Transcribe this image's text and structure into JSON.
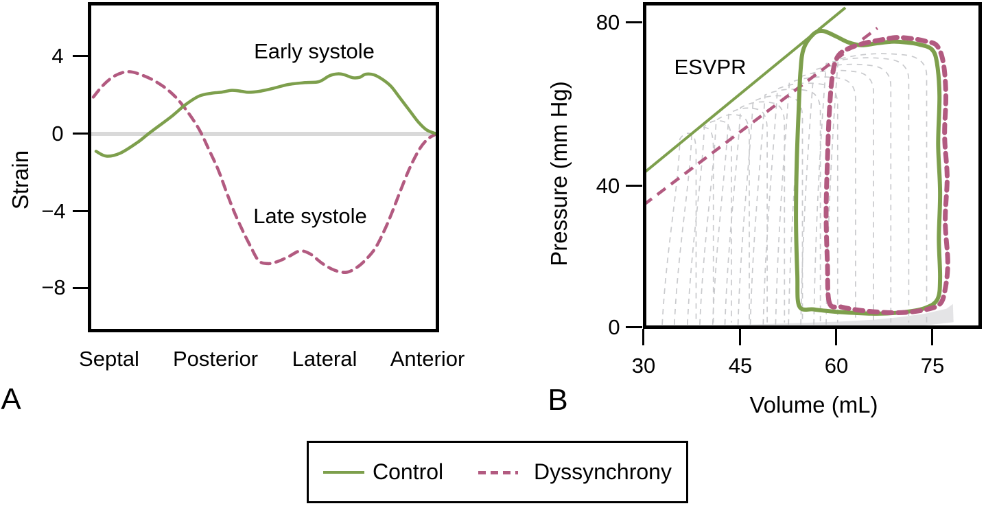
{
  "panel_labels": {
    "a": "A",
    "b": "B"
  },
  "colors": {
    "control": "#7d9f4c",
    "dyssynchrony": "#b25a80",
    "background_loop": "#c9cacd",
    "zero_line": "#d9d9d9",
    "edpvr_fill": "#e4e4e6",
    "axis": "#000000"
  },
  "legend": {
    "control_label": "Control",
    "dyssynchrony_label": "Dyssynchrony"
  },
  "chart_data": [
    {
      "id": "regional_strain",
      "type": "line",
      "ylabel": "Strain",
      "x_categories": [
        "Septal",
        "Posterior",
        "Lateral",
        "Anterior"
      ],
      "yticks": [
        4,
        0,
        -4,
        -8
      ],
      "ytick_labels": [
        "4",
        "0",
        "−4",
        "−8"
      ],
      "ylim": [
        -10.2,
        6.8
      ],
      "zero_line": true,
      "legend_position": "bottom",
      "annotations": [
        {
          "text": "Early systole"
        },
        {
          "text": "Late systole"
        }
      ],
      "series": [
        {
          "name": "Early systole",
          "legend": "Control",
          "style": "solid",
          "color": "control",
          "points": [
            [
              0.008,
              -0.9
            ],
            [
              0.038,
              -1.15
            ],
            [
              0.078,
              -1.0
            ],
            [
              0.128,
              -0.45
            ],
            [
              0.164,
              0.05
            ],
            [
              0.228,
              0.9
            ],
            [
              0.268,
              1.5
            ],
            [
              0.308,
              1.95
            ],
            [
              0.344,
              2.1
            ],
            [
              0.372,
              2.15
            ],
            [
              0.404,
              2.25
            ],
            [
              0.432,
              2.2
            ],
            [
              0.452,
              2.15
            ],
            [
              0.484,
              2.2
            ],
            [
              0.524,
              2.35
            ],
            [
              0.568,
              2.55
            ],
            [
              0.618,
              2.65
            ],
            [
              0.658,
              2.7
            ],
            [
              0.688,
              3.0
            ],
            [
              0.712,
              3.1
            ],
            [
              0.732,
              3.05
            ],
            [
              0.756,
              2.9
            ],
            [
              0.776,
              2.92
            ],
            [
              0.794,
              3.08
            ],
            [
              0.818,
              3.05
            ],
            [
              0.844,
              2.8
            ],
            [
              0.868,
              2.45
            ],
            [
              0.894,
              1.85
            ],
            [
              0.922,
              1.2
            ],
            [
              0.948,
              0.6
            ],
            [
              0.972,
              0.2
            ],
            [
              1.0,
              0.0
            ]
          ]
        },
        {
          "name": "Late systole",
          "legend": "Dyssynchrony",
          "style": "dashed",
          "color": "dyssynchrony",
          "points": [
            [
              0.0,
              1.9
            ],
            [
              0.028,
              2.5
            ],
            [
              0.058,
              2.95
            ],
            [
              0.088,
              3.18
            ],
            [
              0.112,
              3.2
            ],
            [
              0.14,
              3.05
            ],
            [
              0.172,
              2.8
            ],
            [
              0.208,
              2.4
            ],
            [
              0.24,
              1.9
            ],
            [
              0.268,
              1.3
            ],
            [
              0.294,
              0.65
            ],
            [
              0.314,
              0.05
            ],
            [
              0.338,
              -0.85
            ],
            [
              0.364,
              -1.85
            ],
            [
              0.388,
              -3.0
            ],
            [
              0.41,
              -4.0
            ],
            [
              0.434,
              -4.95
            ],
            [
              0.458,
              -5.8
            ],
            [
              0.482,
              -6.55
            ],
            [
              0.508,
              -6.7
            ],
            [
              0.536,
              -6.6
            ],
            [
              0.568,
              -6.35
            ],
            [
              0.602,
              -6.05
            ],
            [
              0.632,
              -6.2
            ],
            [
              0.668,
              -6.7
            ],
            [
              0.704,
              -7.05
            ],
            [
              0.738,
              -7.15
            ],
            [
              0.768,
              -6.9
            ],
            [
              0.794,
              -6.5
            ],
            [
              0.822,
              -5.9
            ],
            [
              0.848,
              -5.0
            ],
            [
              0.872,
              -4.0
            ],
            [
              0.896,
              -2.9
            ],
            [
              0.924,
              -1.7
            ],
            [
              0.952,
              -0.75
            ],
            [
              0.976,
              -0.25
            ],
            [
              1.0,
              0.0
            ]
          ]
        }
      ]
    },
    {
      "id": "pressure_volume_loops",
      "type": "line",
      "xlabel": "Volume (mL)",
      "ylabel": "Pressure (mm Hg)",
      "xticks": [
        30,
        45,
        60,
        75
      ],
      "xtick_labels": [
        "30",
        "45",
        "60",
        "75"
      ],
      "yticks": [
        80,
        40,
        0
      ],
      "ytick_labels": [
        "80",
        "40",
        "0"
      ],
      "xlim": [
        30,
        82.5
      ],
      "ylim": [
        0,
        86
      ],
      "annotations": [
        {
          "text": "ESVPR"
        }
      ],
      "esvpr_lines": [
        {
          "name": "Control",
          "style": "solid",
          "color": "control",
          "points": [
            [
              30,
              43
            ],
            [
              61.5,
              83.5
            ]
          ]
        },
        {
          "name": "Dyssynchrony",
          "style": "dashed",
          "color": "dyssynchrony",
          "points": [
            [
              30,
              34.5
            ],
            [
              66.5,
              78.5
            ]
          ]
        }
      ],
      "loops": [
        {
          "name": "Control",
          "style": "solid",
          "color": "control",
          "points": [
            [
              54.3,
              6
            ],
            [
              54.0,
              15
            ],
            [
              53.8,
              30
            ],
            [
              53.9,
              45
            ],
            [
              54.2,
              58
            ],
            [
              54.5,
              68
            ],
            [
              55.0,
              73.5
            ],
            [
              56.5,
              77
            ],
            [
              58,
              77.8
            ],
            [
              60,
              76.5
            ],
            [
              62,
              75
            ],
            [
              64,
              74.3
            ],
            [
              66.5,
              74.8
            ],
            [
              69,
              75.2
            ],
            [
              71,
              75
            ],
            [
              73,
              74.5
            ],
            [
              75,
              73.3
            ],
            [
              75.8,
              70
            ],
            [
              76.2,
              62
            ],
            [
              76.0,
              50
            ],
            [
              76.3,
              38
            ],
            [
              76.1,
              25
            ],
            [
              76.3,
              14
            ],
            [
              75.9,
              8
            ],
            [
              74,
              5.5
            ],
            [
              71,
              4.4
            ],
            [
              67,
              3.9
            ],
            [
              63,
              4.1
            ],
            [
              59,
              4.6
            ],
            [
              56.5,
              5.1
            ]
          ]
        },
        {
          "name": "Dyssynchrony",
          "style": "dashed",
          "color": "dyssynchrony",
          "points": [
            [
              59.0,
              7
            ],
            [
              58.7,
              18
            ],
            [
              58.5,
              32
            ],
            [
              58.7,
              46
            ],
            [
              59.0,
              58
            ],
            [
              59.5,
              67
            ],
            [
              60.3,
              71.5
            ],
            [
              62,
              73.5
            ],
            [
              64.5,
              74.8
            ],
            [
              67,
              75.6
            ],
            [
              69.5,
              76.2
            ],
            [
              72,
              75.9
            ],
            [
              74,
              75.3
            ],
            [
              75.8,
              74.2
            ],
            [
              76.8,
              70
            ],
            [
              77.2,
              62
            ],
            [
              77.0,
              52
            ],
            [
              77.4,
              42
            ],
            [
              77.1,
              30
            ],
            [
              77.5,
              18
            ],
            [
              77.0,
              10
            ],
            [
              76.2,
              6.5
            ],
            [
              74,
              5.0
            ],
            [
              70.5,
              4.2
            ],
            [
              67,
              4.3
            ],
            [
              63.5,
              4.9
            ],
            [
              60.8,
              5.8
            ]
          ]
        }
      ],
      "background_loops": [
        {
          "esv": 35.5,
          "edv": 38.2,
          "top_p": 53.0,
          "slant": 2.6
        },
        {
          "esv": 37.3,
          "edv": 40.9,
          "top_p": 54.5,
          "slant": 2.5
        },
        {
          "esv": 39.2,
          "edv": 43.7,
          "top_p": 56.1,
          "slant": 2.35
        },
        {
          "esv": 41.0,
          "edv": 46.5,
          "top_p": 57.6,
          "slant": 2.23
        },
        {
          "esv": 42.9,
          "edv": 49.3,
          "top_p": 59.2,
          "slant": 2.11
        },
        {
          "esv": 44.7,
          "edv": 52.0,
          "top_p": 60.7,
          "slant": 2.0
        },
        {
          "esv": 46.6,
          "edv": 54.8,
          "top_p": 62.2,
          "slant": 1.86
        },
        {
          "esv": 48.4,
          "edv": 57.6,
          "top_p": 63.8,
          "slant": 1.74
        },
        {
          "esv": 50.3,
          "edv": 60.3,
          "top_p": 65.3,
          "slant": 1.62
        },
        {
          "esv": 52.1,
          "edv": 63.1,
          "top_p": 66.8,
          "slant": 1.49
        },
        {
          "esv": 54.0,
          "edv": 65.9,
          "top_p": 68.4,
          "slant": 1.37
        },
        {
          "esv": 55.8,
          "edv": 68.6,
          "top_p": 69.9,
          "slant": 1.25
        },
        {
          "esv": 57.7,
          "edv": 71.4,
          "top_p": 71.5,
          "slant": 1.12
        },
        {
          "esv": 59.5,
          "edv": 74.2,
          "top_p": 72.5,
          "slant": 1.0
        }
      ],
      "edpvr_region": [
        [
          33.5,
          0.15
        ],
        [
          40,
          0.5
        ],
        [
          48,
          0.9
        ],
        [
          55,
          1.3
        ],
        [
          61,
          1.7
        ],
        [
          66,
          2.2
        ],
        [
          70,
          2.9
        ],
        [
          74,
          3.9
        ],
        [
          77.3,
          5.3
        ],
        [
          78.3,
          6.6
        ],
        [
          78.4,
          1.5
        ],
        [
          74,
          0.6
        ],
        [
          66,
          0.2
        ],
        [
          55,
          0.05
        ],
        [
          42,
          0.0
        ],
        [
          33.5,
          -0.1
        ]
      ]
    }
  ]
}
